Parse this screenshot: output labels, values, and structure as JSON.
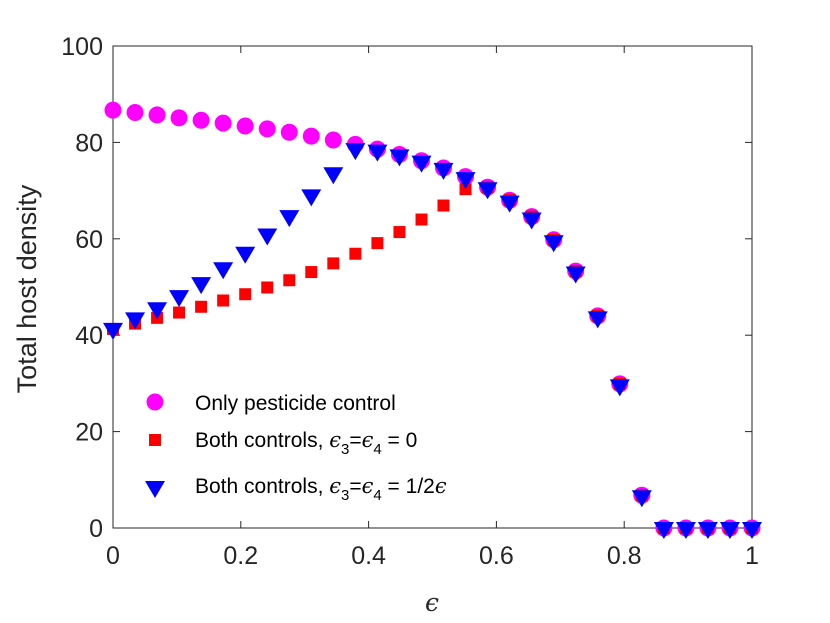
{
  "chart_data": {
    "type": "scatter",
    "title": "",
    "xlabel": "ϵ",
    "ylabel": "Total host density",
    "xlim": [
      0,
      1
    ],
    "ylim": [
      0,
      100
    ],
    "xticks": [
      0,
      0.2,
      0.4,
      0.6,
      0.8,
      1
    ],
    "xtick_labels": [
      "0",
      "0.2",
      "0.4",
      "0.6",
      "0.8",
      "1"
    ],
    "yticks": [
      0,
      20,
      40,
      60,
      80,
      100
    ],
    "ytick_labels": [
      "0",
      "20",
      "40",
      "60",
      "80",
      "100"
    ],
    "grid": false,
    "legend_position": "bottom-left",
    "series": [
      {
        "name": "Only pesticide control",
        "marker": "circle",
        "color": "#ff00ff",
        "x": [
          0,
          0.0345,
          0.069,
          0.1034,
          0.1379,
          0.1724,
          0.2069,
          0.2414,
          0.2759,
          0.3103,
          0.3448,
          0.3793,
          0.4138,
          0.4483,
          0.4828,
          0.5172,
          0.5517,
          0.5862,
          0.6207,
          0.6552,
          0.6897,
          0.7241,
          0.7586,
          0.7931,
          0.8276,
          0.8621,
          0.8966,
          0.931,
          0.9655,
          1
        ],
        "y": [
          86.7,
          86.2,
          85.7,
          85.1,
          84.6,
          84.0,
          83.4,
          82.8,
          82.1,
          81.3,
          80.5,
          79.6,
          78.6,
          77.5,
          76.2,
          74.7,
          72.9,
          70.7,
          68.0,
          64.6,
          59.8,
          53.3,
          44.0,
          29.9,
          6.8,
          0,
          0,
          0,
          0,
          0
        ]
      },
      {
        "name": "Both controls, ϵ3=ϵ4 = 0",
        "legend_parts": {
          "prefix": "Both controls, ",
          "eps": "ϵ",
          "sub3": "3",
          "equals": "=",
          "sub4": "4",
          "suffix": " = 0"
        },
        "marker": "square",
        "color": "#ff0000",
        "x": [
          0,
          0.0345,
          0.069,
          0.1034,
          0.1379,
          0.1724,
          0.2069,
          0.2414,
          0.2759,
          0.3103,
          0.3448,
          0.3793,
          0.4138,
          0.4483,
          0.4828,
          0.5172,
          0.5517,
          0.5862,
          0.6207,
          0.6552,
          0.6897,
          0.7241,
          0.7586,
          0.7931,
          0.8276,
          0.8621,
          0.8966,
          0.931,
          0.9655,
          1
        ],
        "y": [
          41.3,
          42.4,
          43.6,
          44.7,
          45.9,
          47.2,
          48.5,
          49.9,
          51.4,
          53.1,
          54.9,
          56.9,
          59.1,
          61.4,
          64.0,
          66.9,
          70.3,
          70.7,
          68.0,
          64.6,
          59.8,
          53.3,
          44.0,
          29.9,
          6.8,
          0,
          0,
          0,
          0,
          0
        ]
      },
      {
        "name": "Both controls, ϵ3=ϵ4 = 1/2ϵ",
        "legend_parts": {
          "prefix": "Both controls, ",
          "eps": "ϵ",
          "sub3": "3",
          "equals": "=",
          "sub4": "4",
          "suffix": " = 1/2",
          "eps_end": "ϵ"
        },
        "marker": "triangle-down",
        "color": "#0000ff",
        "x": [
          0,
          0.0345,
          0.069,
          0.1034,
          0.1379,
          0.1724,
          0.2069,
          0.2414,
          0.2759,
          0.3103,
          0.3448,
          0.3793,
          0.4138,
          0.4483,
          0.4828,
          0.5172,
          0.5517,
          0.5862,
          0.6207,
          0.6552,
          0.6897,
          0.7241,
          0.7586,
          0.7931,
          0.8276,
          0.8621,
          0.8966,
          0.931,
          0.9655,
          1
        ],
        "y": [
          41.3,
          43.5,
          45.6,
          48.1,
          50.8,
          53.9,
          57.1,
          60.9,
          64.7,
          69.0,
          73.6,
          78.6,
          78.3,
          77.3,
          76.0,
          74.5,
          72.6,
          70.5,
          67.7,
          64.2,
          59.5,
          53.0,
          43.7,
          29.6,
          6.6,
          0,
          0,
          0,
          0,
          0
        ]
      }
    ]
  }
}
